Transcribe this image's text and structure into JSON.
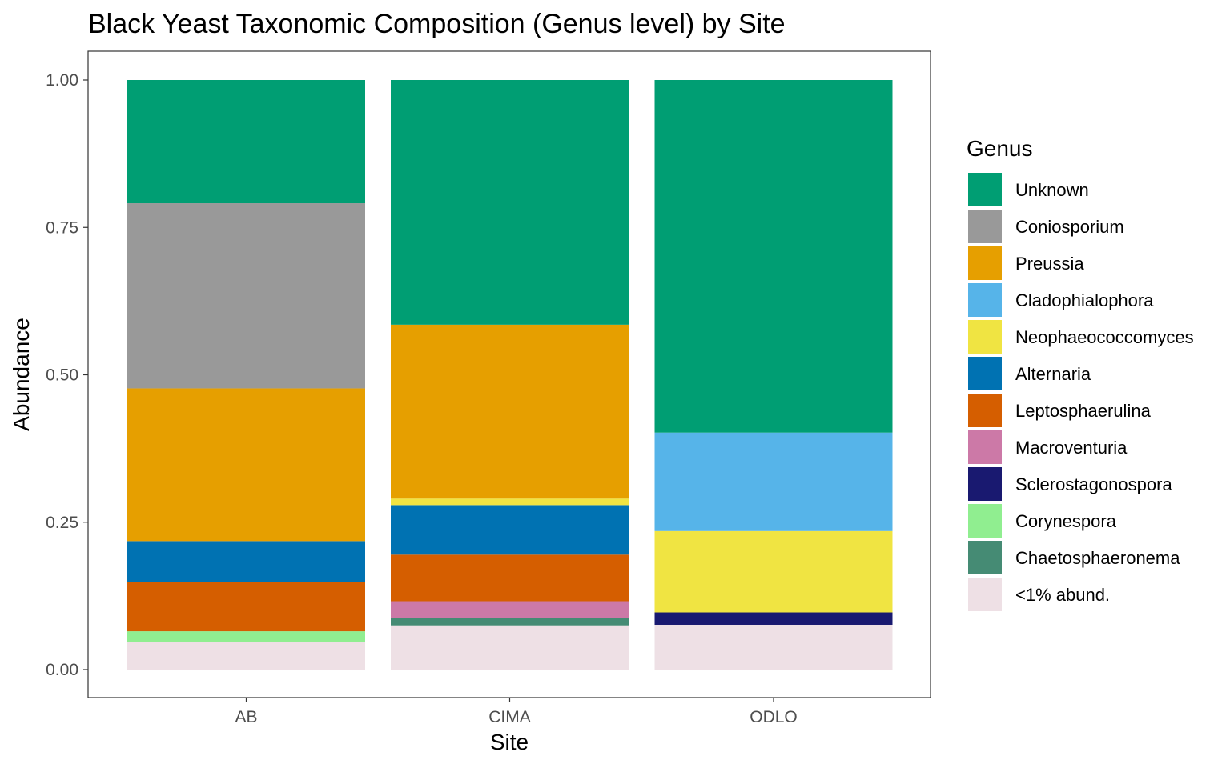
{
  "chart_data": {
    "type": "bar",
    "stacked": true,
    "title": "Black Yeast Taxonomic Composition (Genus level) by Site",
    "xlabel": "Site",
    "ylabel": "Abundance",
    "ylim": [
      0,
      1
    ],
    "yticks": [
      0,
      0.25,
      0.5,
      0.75,
      1.0
    ],
    "ytick_labels": [
      "0.00",
      "0.25",
      "0.50",
      "0.75",
      "1.00"
    ],
    "categories": [
      "AB",
      "CIMA",
      "ODLO"
    ],
    "legend_title": "Genus",
    "legend_position": "right",
    "grid": false,
    "series": [
      {
        "name": "<1% abund.",
        "color": "#EEE0E5",
        "values": [
          0.047,
          0.075,
          0.076
        ]
      },
      {
        "name": "Chaetosphaeronema",
        "color": "#458B74",
        "values": [
          0,
          0.013,
          0
        ]
      },
      {
        "name": "Corynespora",
        "color": "#90EE90",
        "values": [
          0.018,
          0,
          0
        ]
      },
      {
        "name": "Sclerostagonospora",
        "color": "#191970",
        "values": [
          0,
          0,
          0.021
        ]
      },
      {
        "name": "Macroventuria",
        "color": "#CC79A7",
        "values": [
          0,
          0.028,
          0
        ]
      },
      {
        "name": "Leptosphaerulina",
        "color": "#D55E00",
        "values": [
          0.083,
          0.079,
          0
        ]
      },
      {
        "name": "Alternaria",
        "color": "#0072B2",
        "values": [
          0.07,
          0.084,
          0
        ]
      },
      {
        "name": "Neophaeococcomyces",
        "color": "#F0E442",
        "values": [
          0,
          0.011,
          0.138
        ]
      },
      {
        "name": "Cladophialophora",
        "color": "#56B4E9",
        "values": [
          0,
          0,
          0.167
        ]
      },
      {
        "name": "Preussia",
        "color": "#E69F00",
        "values": [
          0.259,
          0.295,
          0
        ]
      },
      {
        "name": "Coniosporium",
        "color": "#999999",
        "values": [
          0.314,
          0,
          0
        ]
      },
      {
        "name": "Unknown",
        "color": "#009E73",
        "values": [
          0.209,
          0.415,
          0.598
        ]
      }
    ],
    "legend_order": [
      "Unknown",
      "Coniosporium",
      "Preussia",
      "Cladophialophora",
      "Neophaeococcomyces",
      "Alternaria",
      "Leptosphaerulina",
      "Macroventuria",
      "Sclerostagonospora",
      "Corynespora",
      "Chaetosphaeronema",
      "<1% abund."
    ]
  }
}
